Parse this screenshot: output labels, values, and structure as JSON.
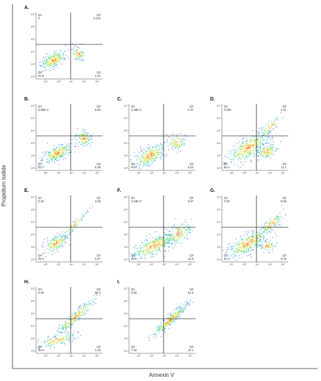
{
  "figure": {
    "ylabel": "Propidium Iodide",
    "xlabel": "Annexin V"
  },
  "chart_data": [
    {
      "panel": "A.",
      "type": "scatter",
      "quadrants": [
        {
          "name": "Q1",
          "value": "0"
        },
        {
          "name": "Q2",
          "value": "0.016"
        },
        {
          "name": "Q3",
          "value": "2.44"
        },
        {
          "name": "Q4",
          "value": "97.5"
        }
      ],
      "tick_labels_x": [
        "10²",
        "10³",
        "10⁴",
        "10⁵",
        "10⁶"
      ],
      "tick_labels_y": [
        "10⁷",
        "10⁶",
        "10⁵",
        "10⁴",
        "10³",
        "10²"
      ]
    },
    {
      "panel": "B.",
      "type": "scatter",
      "quadrants": [
        {
          "name": "Q1",
          "value": "6.08E-3"
        },
        {
          "name": "Q2",
          "value": "6.86"
        },
        {
          "name": "Q3",
          "value": "9.38"
        },
        {
          "name": "Q4",
          "value": "83.7"
        }
      ],
      "tick_labels_x": [
        "10²",
        "10³",
        "10⁴",
        "10⁵",
        "10⁶"
      ],
      "tick_labels_y": [
        "10⁷",
        "10⁶",
        "10⁵",
        "10⁴",
        "10³",
        "10²"
      ]
    },
    {
      "panel": "C.",
      "type": "scatter",
      "quadrants": [
        {
          "name": "Q1",
          "value": "3.49E-3"
        },
        {
          "name": "Q2",
          "value": "0.37"
        },
        {
          "name": "Q3",
          "value": "6.53"
        },
        {
          "name": "Q4",
          "value": "93.1"
        }
      ],
      "tick_labels_x": [
        "10²",
        "10³",
        "10⁴",
        "10⁵",
        "10⁶"
      ],
      "tick_labels_y": [
        "10⁷",
        "10⁶",
        "10⁵",
        "10⁴",
        "10³",
        "10²"
      ]
    },
    {
      "panel": "D.",
      "type": "scatter",
      "quadrants": [
        {
          "name": "Q1",
          "value": "0.084"
        },
        {
          "name": "Q2",
          "value": "2.41"
        },
        {
          "name": "Q3",
          "value": "11.2"
        },
        {
          "name": "Q4",
          "value": "86.3"
        }
      ],
      "tick_labels_x": [
        "10²",
        "10³",
        "10⁴",
        "10⁵",
        "10⁶"
      ],
      "tick_labels_y": [
        "10⁷",
        "10⁶",
        "10⁵",
        "10⁴",
        "10³",
        "10²"
      ]
    },
    {
      "panel": "E.",
      "type": "scatter",
      "quadrants": [
        {
          "name": "Q1",
          "value": "0.25"
        },
        {
          "name": "Q2",
          "value": "2.08"
        },
        {
          "name": "Q3",
          "value": "5.27"
        },
        {
          "name": "Q4",
          "value": "92.4"
        }
      ],
      "tick_labels_x": [
        "10²",
        "10³",
        "10⁴",
        "10⁵",
        "10⁶"
      ],
      "tick_labels_y": [
        "10⁷",
        "10⁶",
        "10⁵",
        "10⁴",
        "10³",
        "10²"
      ]
    },
    {
      "panel": "F.",
      "type": "scatter",
      "quadrants": [
        {
          "name": "Q1",
          "value": "4.94E-3"
        },
        {
          "name": "Q2",
          "value": "0.97"
        },
        {
          "name": "Q3",
          "value": "13.8"
        },
        {
          "name": "Q4",
          "value": "85.2"
        }
      ],
      "tick_labels_x": [
        "10²",
        "10³",
        "10⁴",
        "10⁵",
        "10⁶"
      ],
      "tick_labels_y": [
        "10⁷",
        "10⁶",
        "10⁵",
        "10⁴",
        "10³",
        "10²"
      ]
    },
    {
      "panel": "G.",
      "type": "scatter",
      "quadrants": [
        {
          "name": "Q1",
          "value": "0.59"
        },
        {
          "name": "Q2",
          "value": "9.66"
        },
        {
          "name": "Q3",
          "value": "8.43"
        },
        {
          "name": "Q4",
          "value": "81.4"
        }
      ],
      "tick_labels_x": [
        "10²",
        "10³",
        "10⁴",
        "10⁵",
        "10⁶"
      ],
      "tick_labels_y": [
        "10⁷",
        "10⁶",
        "10⁵",
        "10⁴",
        "10³",
        "10²"
      ]
    },
    {
      "panel": "H.",
      "type": "scatter",
      "quadrants": [
        {
          "name": "Q1",
          "value": "5.08"
        },
        {
          "name": "Q2",
          "value": "56.0"
        },
        {
          "name": "Q3",
          "value": "2.33"
        },
        {
          "name": "Q4",
          "value": "36.6"
        }
      ],
      "tick_labels_x": [
        "10²",
        "10³",
        "10⁴",
        "10⁵",
        "10⁶"
      ],
      "tick_labels_y": [
        "10⁷",
        "10⁶",
        "10⁵",
        "10⁴",
        "10³",
        "10²"
      ]
    },
    {
      "panel": "I.",
      "type": "scatter",
      "quadrants": [
        {
          "name": "Q1",
          "value": "0.69"
        },
        {
          "name": "Q2",
          "value": "81.5"
        },
        {
          "name": "Q3",
          "value": "10.1"
        },
        {
          "name": "Q4",
          "value": "7.05"
        }
      ],
      "tick_labels_x": [
        "10²",
        "10³",
        "10⁴",
        "10⁵",
        "10⁶"
      ],
      "tick_labels_y": [
        "10⁷",
        "10⁶",
        "10⁵",
        "10⁴",
        "10³",
        "10²"
      ]
    }
  ]
}
